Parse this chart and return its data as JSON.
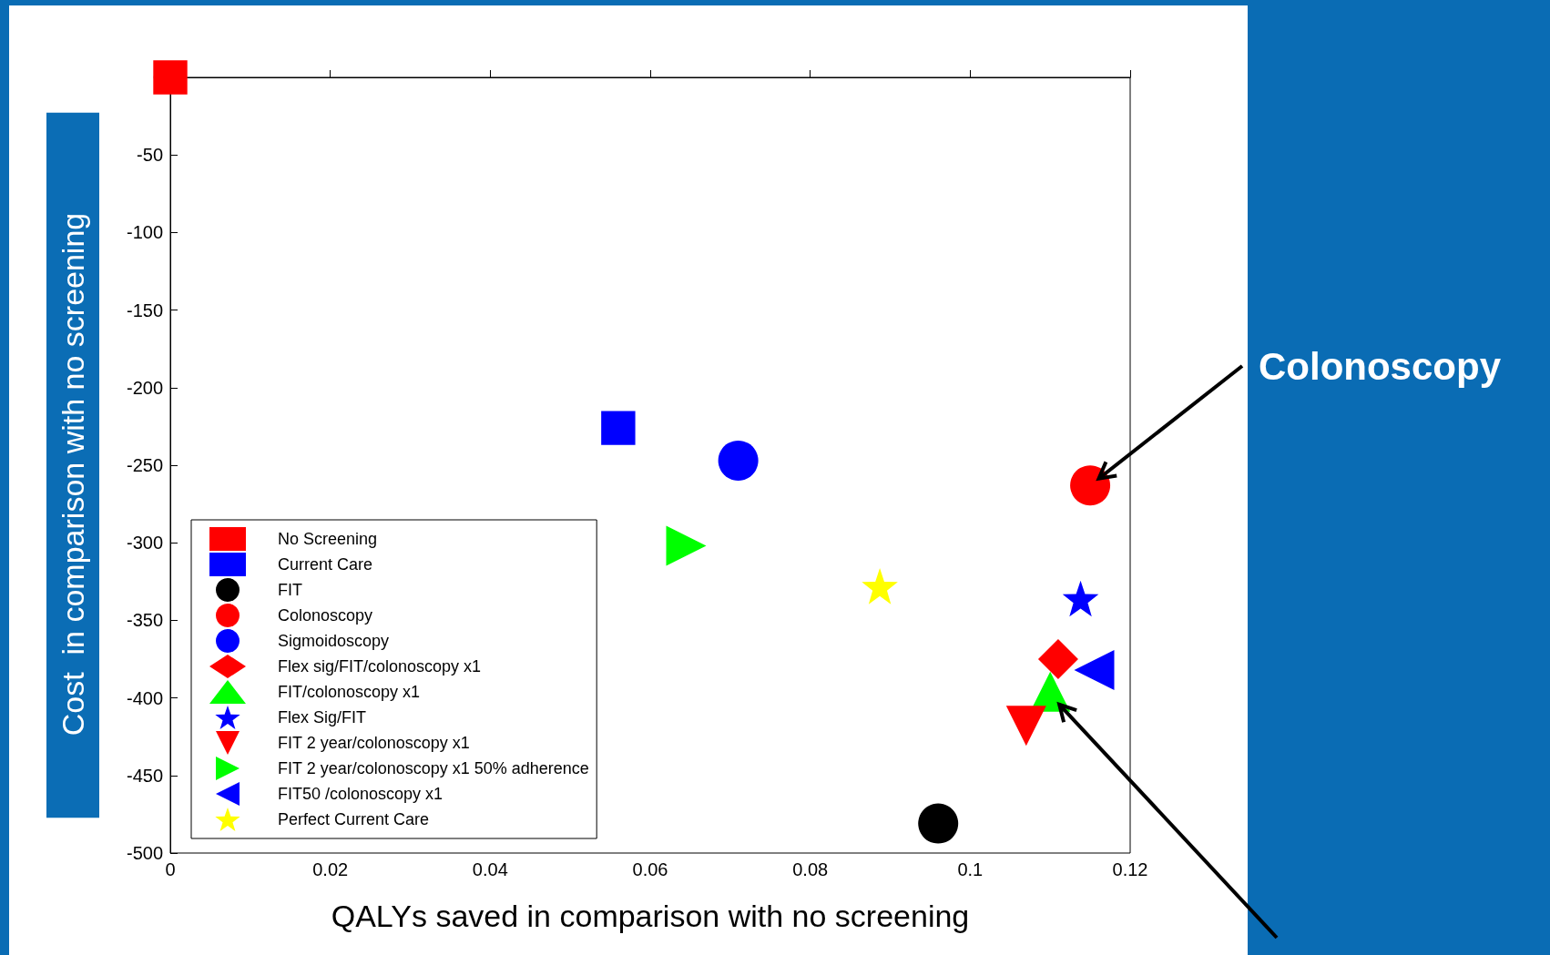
{
  "chart_data": {
    "type": "scatter",
    "xlabel": "QALYs saved in comparison with no screening",
    "ylabel": "Cost  in comparison with no screening",
    "xlim": [
      0,
      0.12
    ],
    "xticks": [
      0,
      0.02,
      0.04,
      0.06,
      0.08,
      0.1,
      0.12
    ],
    "ylim": [
      -500,
      0
    ],
    "yticks": [
      -500,
      -450,
      -400,
      -350,
      -300,
      -250,
      -200,
      -150,
      -100,
      -50,
      0
    ],
    "grid": false,
    "legend": "bottom left",
    "annotations": [
      "Colonoscopy"
    ],
    "series": [
      {
        "name": "No Screening",
        "color": "#ff0000",
        "marker": "square",
        "x": [
          0
        ],
        "values": [
          0
        ]
      },
      {
        "name": "Current Care",
        "color": "#0000ff",
        "marker": "square",
        "x": [
          0.056
        ],
        "values": [
          -226
        ]
      },
      {
        "name": "FIT",
        "color": "#000000",
        "marker": "circle",
        "x": [
          0.096
        ],
        "values": [
          -481
        ]
      },
      {
        "name": "Colonoscopy",
        "color": "#ff0000",
        "marker": "circle",
        "x": [
          0.115
        ],
        "values": [
          -263
        ]
      },
      {
        "name": "Sigmoidoscopy",
        "color": "#0000ff",
        "marker": "circle",
        "x": [
          0.071
        ],
        "values": [
          -247
        ]
      },
      {
        "name": "Flex sig/FIT/colonoscopy x1",
        "color": "#ff0000",
        "marker": "diamond",
        "x": [
          0.111
        ],
        "values": [
          -375
        ]
      },
      {
        "name": "FIT/colonoscopy x1",
        "color": "#00ff00",
        "marker": "triangle",
        "x": [
          0.11
        ],
        "values": [
          -396
        ]
      },
      {
        "name": "Flex Sig/FIT",
        "color": "#0000ff",
        "marker": "star",
        "x": [
          0.1138
        ],
        "values": [
          -336
        ]
      },
      {
        "name": "FIT 2 year/colonoscopy x1",
        "color": "#ff0000",
        "marker": "triangle-down",
        "x": [
          0.107
        ],
        "values": [
          -418
        ]
      },
      {
        "name": "FIT 2 year/colonoscopy x1 50% adherence",
        "color": "#00ff00",
        "marker": "triangle-right",
        "x": [
          0.0645
        ],
        "values": [
          -302
        ]
      },
      {
        "name": "FIT50 /colonoscopy x1",
        "color": "#0000ff",
        "marker": "triangle-left",
        "x": [
          0.1155
        ],
        "values": [
          -382
        ]
      },
      {
        "name": "Perfect Current Care",
        "color": "#ffff00",
        "marker": "star",
        "x": [
          0.0887
        ],
        "values": [
          -328
        ]
      }
    ]
  }
}
